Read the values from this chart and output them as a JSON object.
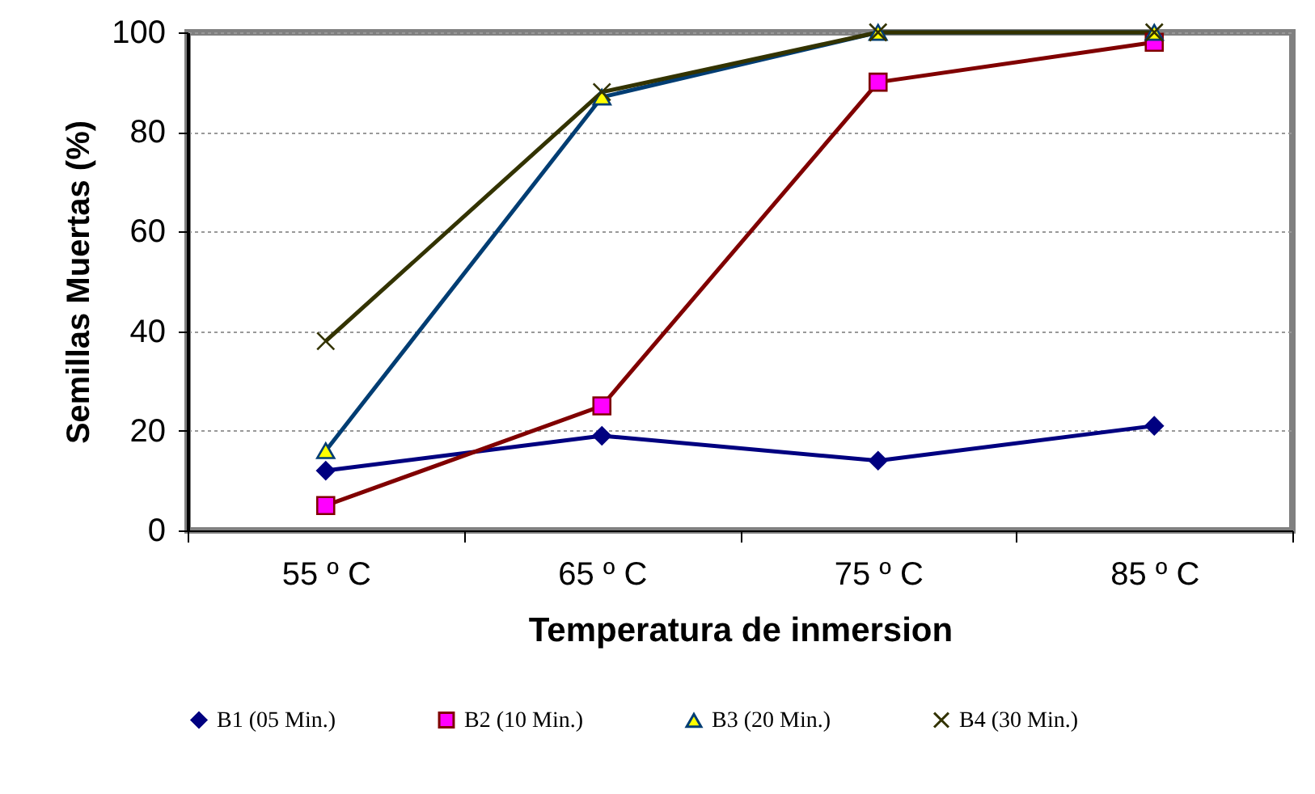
{
  "chart_data": {
    "type": "line",
    "xlabel": "Temperatura de inmersion",
    "ylabel": "Semillas  Muertas  (%)",
    "categories": [
      "55 º C",
      "65 º C",
      "75 º C",
      "85 º C"
    ],
    "ylim": [
      0,
      100
    ],
    "yticks": [
      0,
      20,
      40,
      60,
      80,
      100
    ],
    "grid": "y",
    "legend": "bottom",
    "line_style": "solid",
    "series": [
      {
        "name": "B1 (05 Min.)",
        "color": "#000080",
        "marker": "diamond",
        "values": [
          12,
          19,
          14,
          21
        ]
      },
      {
        "name": "B2 (10 Min.)",
        "color": "#800000",
        "marker": "square",
        "values": [
          5,
          25,
          90,
          98
        ]
      },
      {
        "name": "B3 (20 Min.)",
        "color": "#003d73",
        "marker": "triangle",
        "values": [
          16,
          87,
          100,
          100
        ]
      },
      {
        "name": "B4 (30 Min.)",
        "color": "#333300",
        "marker": "cross",
        "values": [
          38,
          88,
          100,
          100
        ]
      }
    ]
  }
}
